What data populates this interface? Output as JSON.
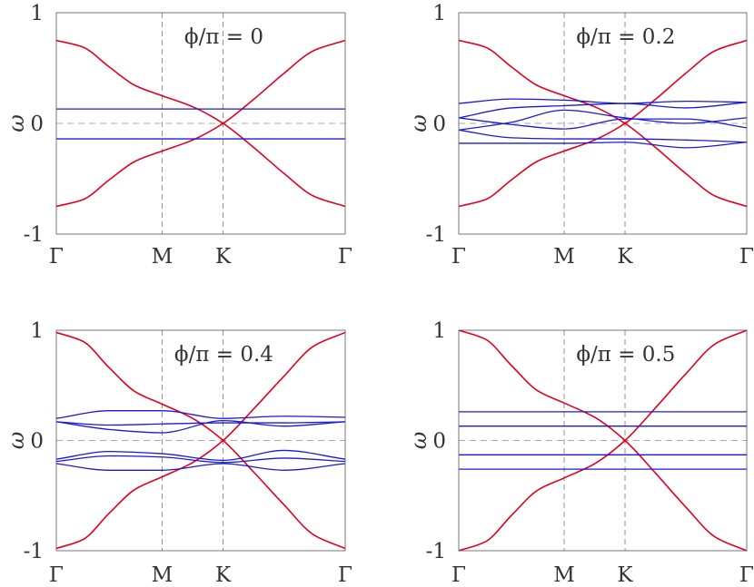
{
  "chart_data": [
    {
      "type": "line",
      "title": "ϕ/π = 0",
      "ylabel": "ω",
      "ylim": [
        -1,
        1
      ],
      "yticks": [
        "1",
        "0",
        "-1"
      ],
      "xticks": [
        "Γ",
        "M",
        "K",
        "Γ"
      ],
      "x_positions": [
        0,
        1,
        1.5774,
        2.7321
      ],
      "series": [
        {
          "color": "#e3001c",
          "x": [
            0,
            0.25,
            0.5,
            0.75,
            1,
            1.29,
            1.5774,
            1.87,
            2.15,
            2.44,
            2.7321
          ],
          "values": [
            0.75,
            0.69,
            0.51,
            0.34,
            0.25,
            0.15,
            0.0,
            -0.22,
            -0.45,
            -0.66,
            -0.75
          ]
        },
        {
          "color": "#e3001c",
          "x": [
            0,
            0.25,
            0.5,
            0.75,
            1,
            1.29,
            1.5774,
            1.87,
            2.15,
            2.44,
            2.7321
          ],
          "values": [
            -0.75,
            -0.69,
            -0.51,
            -0.34,
            -0.25,
            -0.15,
            0.0,
            0.22,
            0.45,
            0.66,
            0.75
          ]
        },
        {
          "color": "#1a1ad6",
          "x": [
            0,
            2.7321
          ],
          "values": [
            0.13,
            0.13
          ]
        },
        {
          "color": "#1a1ad6",
          "x": [
            0,
            2.7321
          ],
          "values": [
            -0.14,
            -0.14
          ]
        }
      ]
    },
    {
      "type": "line",
      "title": "ϕ/π = 0.2",
      "ylabel": "ω",
      "ylim": [
        -1,
        1
      ],
      "yticks": [
        "1",
        "0",
        "-1"
      ],
      "xticks": [
        "Γ",
        "M",
        "K",
        "Γ"
      ],
      "x_positions": [
        0,
        1,
        1.5774,
        2.7321
      ],
      "series": [
        {
          "color": "#e3001c",
          "x": [
            0,
            0.25,
            0.5,
            0.75,
            1,
            1.29,
            1.5774,
            1.87,
            2.15,
            2.44,
            2.7321
          ],
          "values": [
            0.75,
            0.69,
            0.51,
            0.34,
            0.25,
            0.15,
            0.0,
            -0.22,
            -0.45,
            -0.66,
            -0.75
          ]
        },
        {
          "color": "#e3001c",
          "x": [
            0,
            0.25,
            0.5,
            0.75,
            1,
            1.29,
            1.5774,
            1.87,
            2.15,
            2.44,
            2.7321
          ],
          "values": [
            -0.75,
            -0.69,
            -0.51,
            -0.34,
            -0.25,
            -0.15,
            0.0,
            0.22,
            0.45,
            0.66,
            0.75
          ]
        },
        {
          "color": "#1a1ad6",
          "x": [
            0,
            0.5,
            1,
            1.5774,
            2.15,
            2.7321
          ],
          "values": [
            0.18,
            0.22,
            0.21,
            0.18,
            0.2,
            0.19
          ]
        },
        {
          "color": "#1a1ad6",
          "x": [
            0,
            0.5,
            1,
            1.5774,
            2.15,
            2.7321
          ],
          "values": [
            0.05,
            0.14,
            0.16,
            0.18,
            0.14,
            0.19
          ]
        },
        {
          "color": "#1a1ad6",
          "x": [
            0,
            0.5,
            1,
            1.5774,
            2.15,
            2.7321
          ],
          "values": [
            -0.06,
            0.01,
            0.12,
            0.05,
            0.0,
            0.05
          ]
        },
        {
          "color": "#1a1ad6",
          "x": [
            0,
            0.5,
            1,
            1.5774,
            2.15,
            2.7321
          ],
          "values": [
            0.05,
            -0.01,
            -0.05,
            0.04,
            0.04,
            -0.04
          ]
        },
        {
          "color": "#1a1ad6",
          "x": [
            0,
            0.5,
            1,
            1.5774,
            2.15,
            2.7321
          ],
          "values": [
            -0.06,
            -0.13,
            -0.14,
            -0.14,
            -0.15,
            -0.17
          ]
        },
        {
          "color": "#1a1ad6",
          "x": [
            0,
            0.5,
            1,
            1.5774,
            2.15,
            2.7321
          ],
          "values": [
            -0.18,
            -0.18,
            -0.18,
            -0.17,
            -0.22,
            -0.17
          ]
        }
      ]
    },
    {
      "type": "line",
      "title": "ϕ/π = 0.4",
      "ylabel": "ω",
      "ylim": [
        -1,
        1
      ],
      "yticks": [
        "1",
        "0",
        "-1"
      ],
      "xticks": [
        "Γ",
        "M",
        "K",
        "Γ"
      ],
      "x_positions": [
        0,
        1,
        1.5774,
        2.7321
      ],
      "series": [
        {
          "color": "#e3001c",
          "x": [
            0,
            0.25,
            0.5,
            0.75,
            1,
            1.29,
            1.5774,
            1.87,
            2.15,
            2.44,
            2.7321
          ],
          "values": [
            0.98,
            0.9,
            0.66,
            0.44,
            0.33,
            0.2,
            0.0,
            -0.29,
            -0.58,
            -0.86,
            -0.98
          ]
        },
        {
          "color": "#e3001c",
          "x": [
            0,
            0.25,
            0.5,
            0.75,
            1,
            1.29,
            1.5774,
            1.87,
            2.15,
            2.44,
            2.7321
          ],
          "values": [
            -0.98,
            -0.9,
            -0.66,
            -0.44,
            -0.33,
            -0.2,
            0.0,
            0.29,
            0.58,
            0.86,
            0.98
          ]
        },
        {
          "color": "#1a1ad6",
          "x": [
            0,
            0.5,
            1,
            1.5774,
            2.15,
            2.7321
          ],
          "values": [
            0.2,
            0.27,
            0.27,
            0.2,
            0.22,
            0.21
          ]
        },
        {
          "color": "#1a1ad6",
          "x": [
            0,
            0.5,
            1,
            1.5774,
            2.15,
            2.7321
          ],
          "values": [
            0.17,
            0.1,
            0.07,
            0.18,
            0.13,
            0.17
          ]
        },
        {
          "color": "#1a1ad6",
          "x": [
            0,
            0.5,
            1,
            1.5774,
            2.15,
            2.7321
          ],
          "values": [
            0.17,
            0.14,
            0.15,
            0.16,
            0.16,
            0.17
          ]
        },
        {
          "color": "#1a1ad6",
          "x": [
            0,
            0.5,
            1,
            1.5774,
            2.15,
            2.7321
          ],
          "values": [
            -0.17,
            -0.1,
            -0.12,
            -0.18,
            -0.09,
            -0.17
          ]
        },
        {
          "color": "#1a1ad6",
          "x": [
            0,
            0.5,
            1,
            1.5774,
            2.15,
            2.7321
          ],
          "values": [
            -0.19,
            -0.14,
            -0.15,
            -0.2,
            -0.16,
            -0.19
          ]
        },
        {
          "color": "#1a1ad6",
          "x": [
            0,
            0.5,
            1,
            1.5774,
            2.15,
            2.7321
          ],
          "values": [
            -0.21,
            -0.27,
            -0.27,
            -0.21,
            -0.27,
            -0.21
          ]
        }
      ]
    },
    {
      "type": "line",
      "title": "ϕ/π = 0.5",
      "ylabel": "ω",
      "ylim": [
        -1,
        1
      ],
      "yticks": [
        "1",
        "0",
        "-1"
      ],
      "xticks": [
        "Γ",
        "M",
        "K",
        "Γ"
      ],
      "x_positions": [
        0,
        1,
        1.5774,
        2.7321
      ],
      "series": [
        {
          "color": "#e3001c",
          "x": [
            0,
            0.25,
            0.5,
            0.75,
            1,
            1.29,
            1.5774,
            1.87,
            2.15,
            2.44,
            2.7321
          ],
          "values": [
            1.0,
            0.92,
            0.68,
            0.45,
            0.34,
            0.21,
            0.0,
            -0.3,
            -0.6,
            -0.88,
            -1.0
          ]
        },
        {
          "color": "#e3001c",
          "x": [
            0,
            0.25,
            0.5,
            0.75,
            1,
            1.29,
            1.5774,
            1.87,
            2.15,
            2.44,
            2.7321
          ],
          "values": [
            -1.0,
            -0.92,
            -0.68,
            -0.45,
            -0.34,
            -0.21,
            0.0,
            0.3,
            0.6,
            0.88,
            1.0
          ]
        },
        {
          "color": "#1a1ad6",
          "x": [
            0,
            2.7321
          ],
          "values": [
            0.26,
            0.26
          ]
        },
        {
          "color": "#1a1ad6",
          "x": [
            0,
            2.7321
          ],
          "values": [
            0.13,
            0.13
          ]
        },
        {
          "color": "#1a1ad6",
          "x": [
            0,
            2.7321
          ],
          "values": [
            -0.13,
            -0.13
          ]
        },
        {
          "color": "#1a1ad6",
          "x": [
            0,
            2.7321
          ],
          "values": [
            -0.26,
            -0.26
          ]
        }
      ]
    }
  ]
}
